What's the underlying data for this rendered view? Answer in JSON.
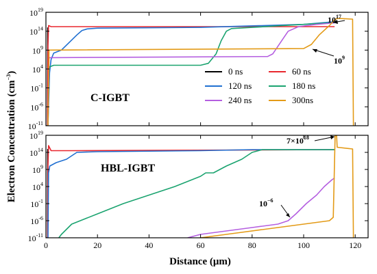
{
  "chart_data": {
    "type": "line",
    "ylabel": "Electron Concentration (cm",
    "ylabel_exp": "−3",
    "ylabel_close": ")",
    "xlabel": "Distance (μm)",
    "xlim": [
      0,
      125
    ],
    "ylim_exp": [
      -11,
      19
    ],
    "x_ticks": [
      "0",
      "20",
      "40",
      "60",
      "80",
      "100",
      "120"
    ],
    "y_tick_base": "10",
    "y_tick_exps": [
      "-11",
      "-6",
      "-1",
      "4",
      "9",
      "14",
      "19"
    ],
    "legend": [
      {
        "label": "0 ns",
        "color": "#000000"
      },
      {
        "label": "60 ns",
        "color": "#e8262d"
      },
      {
        "label": "120 ns",
        "color": "#1f6fd1"
      },
      {
        "label": "180 ns",
        "color": "#1aa36f"
      },
      {
        "label": "240 ns",
        "color": "#b45ee0"
      },
      {
        "label": "300ns",
        "color": "#e39a16"
      }
    ],
    "panels": [
      {
        "label": "C-IGBT",
        "annotations": [
          {
            "base": "10",
            "exp": "17"
          },
          {
            "base": "10",
            "exp": "9"
          }
        ],
        "series": [
          {
            "name": "0 ns",
            "color": "#000000",
            "points": [
              [
                0,
                -11
              ],
              [
                0.6,
                -11
              ],
              [
                0.7,
                15
              ]
            ]
          },
          {
            "name": "60 ns",
            "color": "#e8262d",
            "points": [
              [
                0.6,
                -11
              ],
              [
                0.8,
                10
              ],
              [
                1.0,
                15.5
              ],
              [
                2,
                15.2
              ],
              [
                18,
                15.2
              ],
              [
                112,
                15.2
              ]
            ]
          },
          {
            "name": "120 ns",
            "color": "#1f6fd1",
            "points": [
              [
                0.8,
                -11
              ],
              [
                1.4,
                3
              ],
              [
                2.0,
                6.5
              ],
              [
                3,
                8.2
              ],
              [
                6,
                9
              ],
              [
                9,
                11
              ],
              [
                12,
                13
              ],
              [
                14,
                14.2
              ],
              [
                16,
                14.6
              ],
              [
                20,
                14.8
              ],
              [
                60,
                15.0
              ],
              [
                100,
                15.8
              ],
              [
                112,
                16.5
              ]
            ]
          },
          {
            "name": "180 ns",
            "color": "#1aa36f",
            "points": [
              [
                0.8,
                -11
              ],
              [
                1.2,
                4.5
              ],
              [
                3,
                5
              ],
              [
                60,
                5
              ],
              [
                63,
                5.5
              ],
              [
                66,
                8
              ],
              [
                68,
                11.5
              ],
              [
                70,
                14
              ],
              [
                72,
                14.7
              ],
              [
                80,
                15.0
              ],
              [
                100,
                15.8
              ],
              [
                112,
                16.3
              ]
            ]
          },
          {
            "name": "240 ns",
            "color": "#b45ee0",
            "points": [
              [
                0.8,
                -11
              ],
              [
                1.2,
                7
              ],
              [
                86,
                7.3
              ],
              [
                88,
                8
              ],
              [
                90,
                10
              ],
              [
                92,
                12
              ],
              [
                94,
                14
              ],
              [
                98,
                15.2
              ],
              [
                105,
                15.8
              ],
              [
                112,
                16.2
              ]
            ]
          },
          {
            "name": "300ns",
            "color": "#e39a16",
            "points": [
              [
                0.8,
                -11
              ],
              [
                1.2,
                9
              ],
              [
                100,
                9.4
              ],
              [
                103,
                10.5
              ],
              [
                106,
                13
              ],
              [
                110,
                15.5
              ],
              [
                112,
                17
              ],
              [
                113,
                17.4
              ],
              [
                119,
                17.2
              ],
              [
                119.3,
                -11
              ]
            ]
          }
        ]
      },
      {
        "label": "HBL-IGBT",
        "annotations": [
          {
            "base": "7×10",
            "exp": "18"
          },
          {
            "base": "10",
            "exp": "−6"
          }
        ],
        "series": [
          {
            "name": "0 ns",
            "color": "#000000",
            "points": [
              [
                0,
                -11
              ],
              [
                0.6,
                -11
              ],
              [
                0.7,
                15
              ]
            ]
          },
          {
            "name": "60 ns",
            "color": "#e8262d",
            "points": [
              [
                0.6,
                -11
              ],
              [
                0.8,
                10
              ],
              [
                1.0,
                16
              ],
              [
                2,
                14.5
              ],
              [
                10,
                14.5
              ],
              [
                112,
                14.8
              ]
            ]
          },
          {
            "name": "120 ns",
            "color": "#1f6fd1",
            "points": [
              [
                0.8,
                -11
              ],
              [
                1.0,
                8
              ],
              [
                1.5,
                10
              ],
              [
                4,
                11
              ],
              [
                8,
                12
              ],
              [
                10,
                13
              ],
              [
                12,
                14
              ],
              [
                20,
                14.2
              ],
              [
                60,
                14.5
              ],
              [
                80,
                14.8
              ],
              [
                112,
                14.8
              ]
            ]
          },
          {
            "name": "180 ns",
            "color": "#1aa36f",
            "points": [
              [
                5,
                -11
              ],
              [
                6,
                -10
              ],
              [
                10,
                -7
              ],
              [
                20,
                -4
              ],
              [
                30,
                -1
              ],
              [
                40,
                1.5
              ],
              [
                50,
                4
              ],
              [
                60,
                7
              ],
              [
                62,
                8
              ],
              [
                65,
                8
              ],
              [
                70,
                10
              ],
              [
                73,
                11
              ],
              [
                76,
                12
              ],
              [
                80,
                14
              ],
              [
                84,
                14.8
              ],
              [
                100,
                14.8
              ],
              [
                112,
                14.8
              ]
            ]
          },
          {
            "name": "240 ns",
            "color": "#b45ee0",
            "points": [
              [
                55,
                -11
              ],
              [
                60,
                -10
              ],
              [
                80,
                -8
              ],
              [
                90,
                -7
              ],
              [
                94,
                -6
              ],
              [
                97,
                -4
              ],
              [
                101,
                -1
              ],
              [
                105,
                1.5
              ],
              [
                108,
                4
              ],
              [
                111,
                6
              ],
              [
                112,
                6.5
              ]
            ]
          },
          {
            "name": "300ns",
            "color": "#e39a16",
            "points": [
              [
                55,
                -11.5
              ],
              [
                70,
                -10
              ],
              [
                90,
                -8
              ],
              [
                100,
                -7
              ],
              [
                110,
                -6
              ],
              [
                111.5,
                -5
              ],
              [
                112.2,
                18.8
              ],
              [
                112.8,
                18.8
              ],
              [
                113,
                15.5
              ],
              [
                119,
                15
              ],
              [
                119.3,
                -11
              ]
            ]
          }
        ]
      }
    ]
  }
}
